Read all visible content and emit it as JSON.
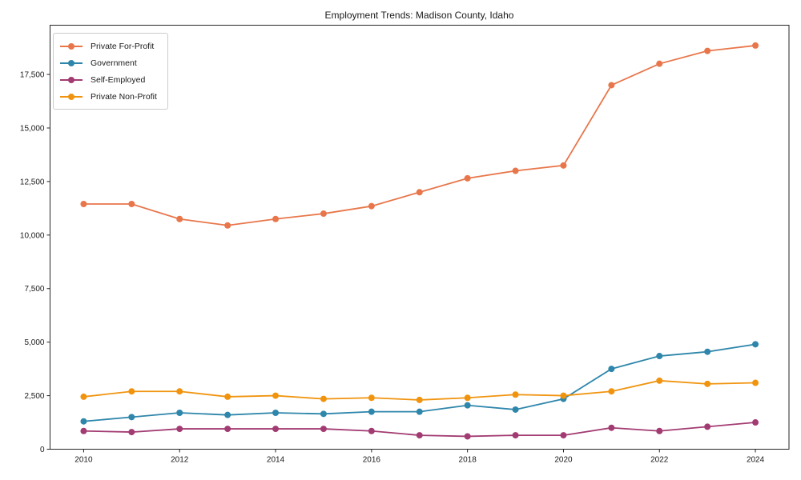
{
  "chart_data": {
    "type": "line",
    "title": "Employment Trends: Madison County, Idaho",
    "xlabel": "",
    "ylabel": "",
    "x": [
      2010,
      2011,
      2012,
      2013,
      2014,
      2015,
      2016,
      2017,
      2018,
      2019,
      2020,
      2021,
      2022,
      2023,
      2024
    ],
    "xtick_values": [
      2010,
      2012,
      2014,
      2016,
      2018,
      2020,
      2022,
      2024
    ],
    "xtick_labels": [
      "2010",
      "2012",
      "2014",
      "2016",
      "2018",
      "2020",
      "2022",
      "2024"
    ],
    "ytick_values": [
      0,
      2500,
      5000,
      7500,
      10000,
      12500,
      15000,
      17500
    ],
    "ytick_labels": [
      "0",
      "2,500",
      "5,000",
      "7,500",
      "10,000",
      "12,500",
      "15,000",
      "17,500"
    ],
    "xlim": [
      2009.3,
      2024.7
    ],
    "ylim": [
      0,
      19800
    ],
    "grid": false,
    "legend_position": "upper left",
    "frame_color": "#262626",
    "text_color": "#1a1a1a",
    "series": [
      {
        "name": "Private For-Profit",
        "color": "#E8764A",
        "values": [
          11450,
          11450,
          10750,
          10450,
          10750,
          11000,
          11350,
          12000,
          12650,
          13000,
          13250,
          17000,
          18000,
          18600,
          18850
        ]
      },
      {
        "name": "Government",
        "color": "#2E86AB",
        "values": [
          1300,
          1500,
          1700,
          1600,
          1700,
          1650,
          1750,
          1750,
          2050,
          1850,
          2350,
          3750,
          4350,
          4550,
          4900
        ]
      },
      {
        "name": "Self-Employed",
        "color": "#A23B72",
        "values": [
          850,
          800,
          950,
          950,
          950,
          950,
          850,
          650,
          600,
          650,
          650,
          1000,
          850,
          1050,
          1250
        ]
      },
      {
        "name": "Private Non-Profit",
        "color": "#F0940F",
        "values": [
          2450,
          2700,
          2700,
          2450,
          2500,
          2350,
          2400,
          2300,
          2400,
          2550,
          2500,
          2700,
          3200,
          3050,
          3100
        ]
      }
    ]
  }
}
